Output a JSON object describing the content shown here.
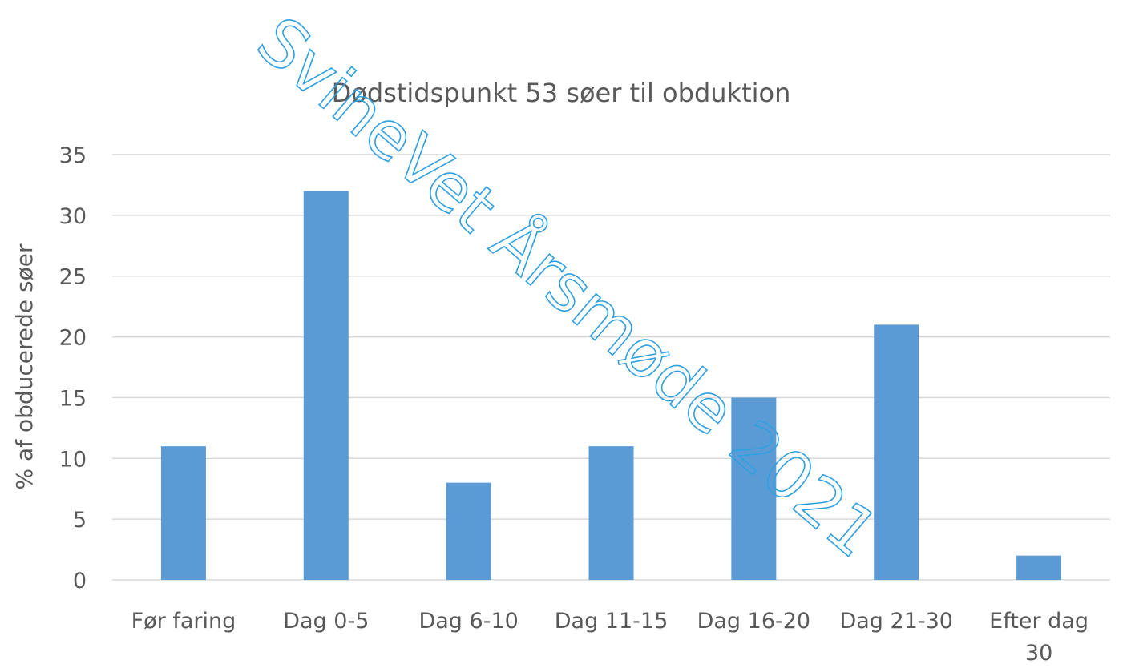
{
  "chart_data": {
    "type": "bar",
    "title": "Dødstidspunkt 53 søer til obduktion",
    "xlabel": "",
    "ylabel": "% af obducerede søer",
    "categories": [
      [
        "Før faring"
      ],
      [
        "Dag 0-5"
      ],
      [
        "Dag 6-10"
      ],
      [
        "Dag 11-15"
      ],
      [
        "Dag 16-20"
      ],
      [
        "Dag 21-30"
      ],
      [
        "Efter dag",
        "30"
      ]
    ],
    "values": [
      11,
      32,
      8,
      11,
      15,
      21,
      2
    ],
    "ylim": [
      0,
      35
    ],
    "yticks": [
      0,
      5,
      10,
      15,
      20,
      25,
      30,
      35
    ],
    "grid": true,
    "legend": "none",
    "bar_color": "#5b9bd5",
    "gridline_color": "#d9d9d9",
    "text_color": "#595959"
  },
  "watermark": {
    "text": "SvineVet Årsmøde 2021",
    "color": "#2ea0e0"
  }
}
